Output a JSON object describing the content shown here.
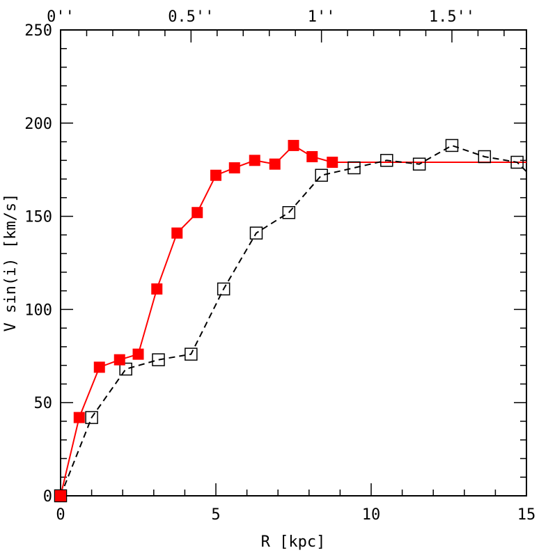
{
  "chart_data": {
    "type": "line",
    "xlabel": "R [kpc]",
    "ylabel": "V sin(i) [km/s]",
    "xlim": [
      0,
      15
    ],
    "ylim": [
      0,
      250
    ],
    "x_ticks": [
      0,
      5,
      10,
      15
    ],
    "x_tick_labels": [
      "0",
      "5",
      "10",
      "15"
    ],
    "y_ticks": [
      0,
      50,
      100,
      150,
      200,
      250
    ],
    "y_tick_labels": [
      "0",
      "50",
      "100",
      "150",
      "200",
      "250"
    ],
    "top_axis_ticks": [
      0,
      0.5,
      1,
      1.5
    ],
    "top_axis_tick_labels": [
      "0''",
      "0.5''",
      "1''",
      "1.5''"
    ],
    "top_axis_kpc_per_arcsec": 8.4,
    "grid": false,
    "series": [
      {
        "marker": "filled-square",
        "color": "#ff0000",
        "line": "solid",
        "x": [
          0,
          0.6,
          1.25,
          1.9,
          2.5,
          3.1,
          3.75,
          4.4,
          5.0,
          5.6,
          6.25,
          6.9,
          7.5,
          8.1,
          8.75
        ],
        "y": [
          0,
          42,
          69,
          73,
          76,
          111,
          141,
          152,
          172,
          176,
          180,
          178,
          188,
          182,
          179
        ],
        "extension": {
          "x": [
            8.75,
            15
          ],
          "y": [
            179,
            179
          ]
        }
      },
      {
        "marker": "open-square",
        "color": "#000000",
        "line": "dashed",
        "x": [
          0,
          1.0,
          2.1,
          3.15,
          4.2,
          5.25,
          6.3,
          7.35,
          8.4,
          9.45,
          10.5,
          11.55,
          12.6,
          13.65,
          14.7,
          15.0
        ],
        "y": [
          0,
          42,
          68,
          73,
          76,
          111,
          141,
          152,
          172,
          176,
          180,
          178,
          188,
          182,
          179,
          174
        ],
        "marker_count": 15
      }
    ]
  }
}
